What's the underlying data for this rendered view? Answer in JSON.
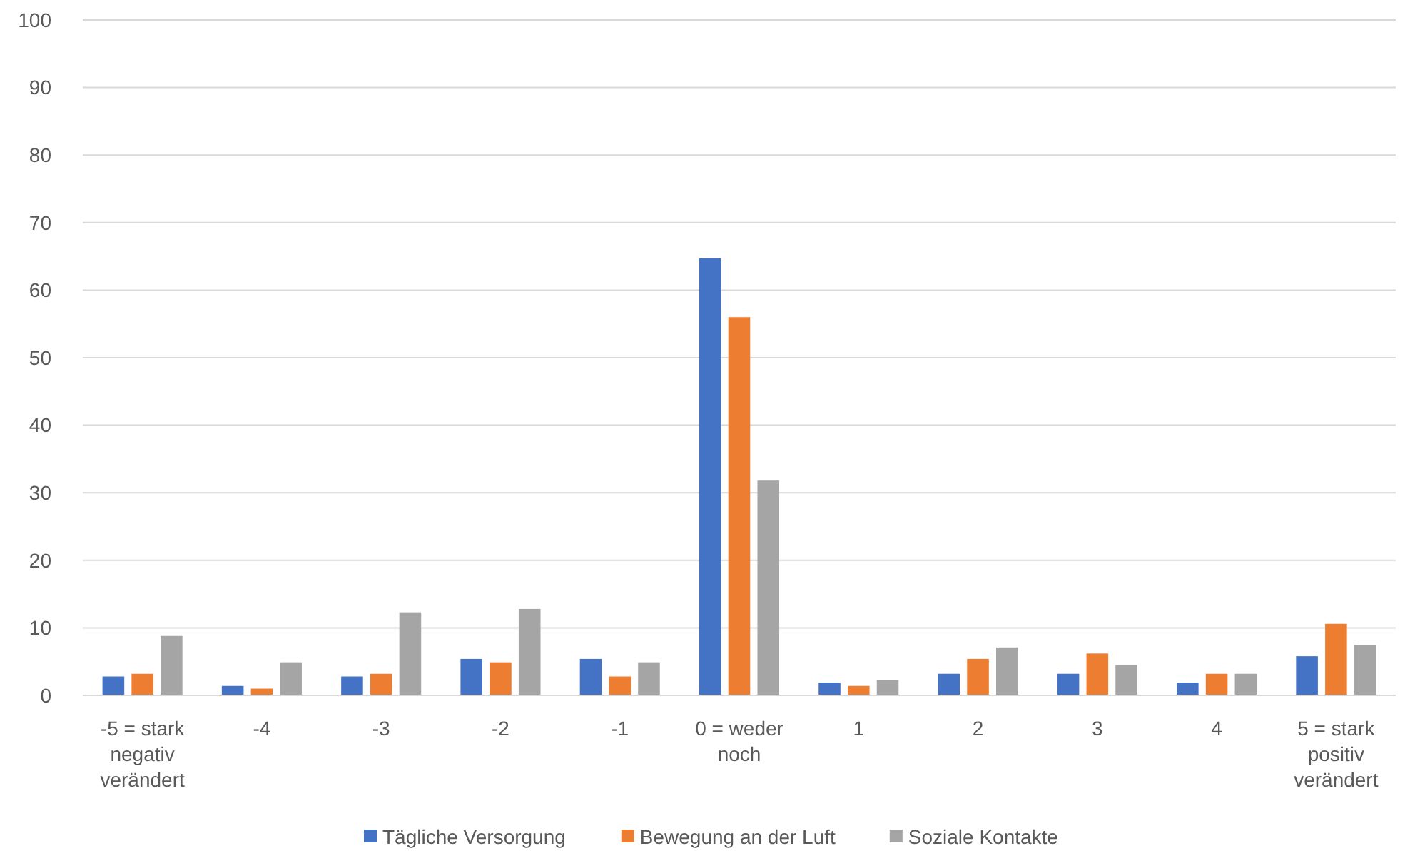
{
  "chart_data": {
    "type": "bar",
    "categories": [
      "-5 = stark negativ verändert",
      "-4",
      "-3",
      "-2",
      "-1",
      "0 = weder noch",
      "1",
      "2",
      "3",
      "4",
      "5 = stark positiv verändert"
    ],
    "series": [
      {
        "name": "Tägliche Versorgung",
        "color": "#4472c4",
        "values": [
          2.8,
          1.4,
          2.8,
          5.4,
          5.4,
          64.7,
          1.9,
          3.2,
          3.2,
          1.9,
          5.8
        ]
      },
      {
        "name": "Bewegung an der Luft",
        "color": "#ed7d31",
        "values": [
          3.2,
          1.0,
          3.2,
          4.9,
          2.8,
          56.0,
          1.4,
          5.4,
          6.2,
          3.2,
          10.6
        ]
      },
      {
        "name": "Soziale Kontakte",
        "color": "#a5a5a5",
        "values": [
          8.8,
          4.9,
          12.3,
          12.8,
          4.9,
          31.8,
          2.3,
          7.1,
          4.5,
          3.2,
          7.5
        ]
      }
    ],
    "ylim": [
      0,
      100
    ],
    "yticks": [
      0,
      10,
      20,
      30,
      40,
      50,
      60,
      70,
      80,
      90,
      100
    ],
    "grid": "y",
    "legend": "bottom"
  }
}
